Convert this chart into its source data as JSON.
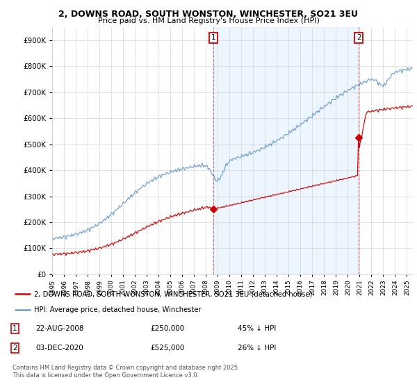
{
  "title1": "2, DOWNS ROAD, SOUTH WONSTON, WINCHESTER, SO21 3EU",
  "title2": "Price paid vs. HM Land Registry's House Price Index (HPI)",
  "legend1": "2, DOWNS ROAD, SOUTH WONSTON, WINCHESTER, SO21 3EU (detached house)",
  "legend2": "HPI: Average price, detached house, Winchester",
  "marker1_label": "1",
  "marker1_date": "22-AUG-2008",
  "marker1_price": "£250,000",
  "marker1_hpi": "45% ↓ HPI",
  "marker1_x": 2008.65,
  "marker1_y_red": 250000,
  "marker2_label": "2",
  "marker2_date": "03-DEC-2020",
  "marker2_price": "£525,000",
  "marker2_hpi": "26% ↓ HPI",
  "marker2_x": 2020.92,
  "marker2_y_red": 525000,
  "footnote": "Contains HM Land Registry data © Crown copyright and database right 2025.\nThis data is licensed under the Open Government Licence v3.0.",
  "color_red": "#cc0000",
  "color_blue": "#6699cc",
  "color_fill": "#ddeeff",
  "bg_color": "#ffffff",
  "ylim_min": 0,
  "ylim_max": 950000,
  "xlim_min": 1995,
  "xlim_max": 2025.5
}
